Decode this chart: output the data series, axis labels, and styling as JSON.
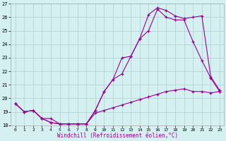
{
  "xlabel": "Windchill (Refroidissement éolien,°C)",
  "xlim": [
    -0.5,
    23.5
  ],
  "ylim": [
    18,
    27
  ],
  "xticks": [
    0,
    1,
    2,
    3,
    4,
    5,
    6,
    7,
    8,
    9,
    10,
    11,
    12,
    13,
    14,
    15,
    16,
    17,
    18,
    19,
    20,
    21,
    22,
    23
  ],
  "yticks": [
    18,
    19,
    20,
    21,
    22,
    23,
    24,
    25,
    26,
    27
  ],
  "background_color": "#d4f0f0",
  "grid_color": "#b0cece",
  "line_color": "#990099",
  "lines": [
    {
      "x": [
        0,
        1,
        2,
        3,
        4,
        5,
        6,
        7,
        8,
        9,
        10,
        11,
        12,
        13,
        14,
        15,
        16,
        17,
        18,
        19,
        20,
        21,
        22,
        23
      ],
      "y": [
        19.6,
        19.0,
        19.1,
        18.5,
        18.2,
        18.1,
        18.1,
        18.1,
        18.1,
        18.9,
        19.1,
        19.3,
        19.5,
        19.7,
        19.9,
        20.1,
        20.3,
        20.5,
        20.6,
        20.7,
        20.5,
        20.5,
        20.4,
        20.5
      ]
    },
    {
      "x": [
        0,
        1,
        2,
        3,
        4,
        5,
        6,
        7,
        8,
        9,
        10,
        11,
        12,
        13,
        14,
        15,
        16,
        17,
        18,
        19,
        20,
        21,
        22,
        23
      ],
      "y": [
        19.6,
        19.0,
        19.1,
        18.5,
        18.2,
        18.1,
        18.1,
        18.1,
        18.1,
        19.1,
        20.5,
        21.4,
        21.8,
        23.1,
        24.4,
        25.0,
        26.6,
        26.0,
        25.8,
        25.8,
        24.2,
        22.8,
        21.5,
        20.5
      ]
    },
    {
      "x": [
        0,
        1,
        2,
        3,
        4,
        5,
        6,
        7,
        8,
        9,
        10,
        11,
        12,
        13,
        14,
        15,
        16,
        17,
        18,
        19,
        20,
        21,
        22,
        23
      ],
      "y": [
        19.6,
        19.0,
        19.1,
        18.5,
        18.5,
        18.1,
        18.1,
        18.1,
        18.1,
        19.1,
        20.5,
        21.4,
        23.0,
        23.1,
        24.4,
        26.2,
        26.7,
        26.5,
        26.1,
        25.9,
        26.0,
        26.1,
        21.6,
        20.6
      ]
    }
  ]
}
